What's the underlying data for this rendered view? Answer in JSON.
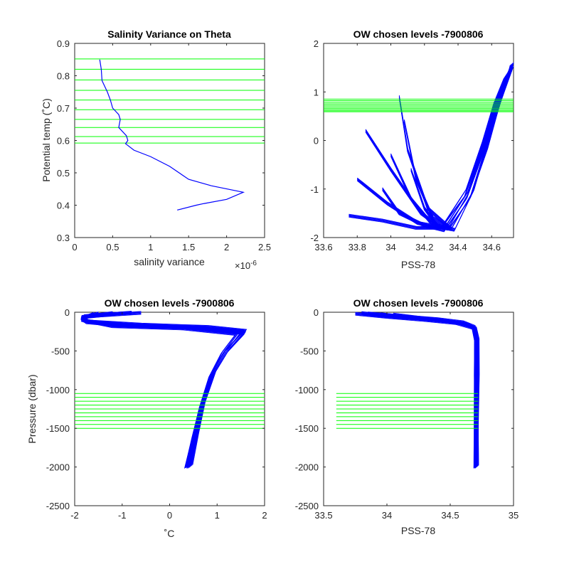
{
  "chart_data": [
    {
      "type": "line",
      "title": "Salinity Variance on Theta",
      "xlabel": "salinity variance",
      "ylabel": "Potential temp (˚C)",
      "x_exponent_label": "×10",
      "x_exponent_power": "-6",
      "xlim": [
        0,
        2.5
      ],
      "ylim": [
        0.3,
        0.9
      ],
      "xticks": [
        0,
        0.5,
        1,
        1.5,
        2,
        2.5
      ],
      "yticks": [
        0.3,
        0.4,
        0.5,
        0.6,
        0.7,
        0.8,
        0.9
      ],
      "series": [
        {
          "color": "#0000ff",
          "x": [
            0.33,
            0.35,
            0.36,
            0.43,
            0.47,
            0.5,
            0.58,
            0.6,
            0.58,
            0.68,
            0.7,
            0.67,
            0.78,
            1.0,
            1.25,
            1.5,
            1.8,
            2.22,
            2.0,
            1.7,
            1.6,
            1.35
          ],
          "y": [
            0.85,
            0.82,
            0.785,
            0.75,
            0.725,
            0.7,
            0.68,
            0.665,
            0.64,
            0.615,
            0.6,
            0.59,
            0.57,
            0.55,
            0.52,
            0.48,
            0.46,
            0.44,
            0.418,
            0.405,
            0.4,
            0.385
          ]
        }
      ],
      "reference_lines": {
        "color": "#00ff00",
        "orientation": "horizontal",
        "y": [
          0.592,
          0.612,
          0.64,
          0.665,
          0.695,
          0.725,
          0.755,
          0.787,
          0.82,
          0.852
        ],
        "x_from": 0,
        "x_to": 2.5
      }
    },
    {
      "type": "line",
      "title": "OW chosen levels -7900806",
      "xlabel": "PSS-78",
      "ylabel": "",
      "xlim": [
        33.6,
        34.73
      ],
      "ylim": [
        -2,
        2
      ],
      "xticks": [
        33.6,
        33.8,
        34,
        34.2,
        34.4,
        34.6
      ],
      "yticks": [
        -2,
        -1,
        0,
        1,
        2
      ],
      "series": [
        {
          "color": "#0000ff",
          "note_visible": "many overlapping theta-salinity profiles",
          "profiles_x": [
            [
              33.75,
              33.95,
              34.15,
              34.3,
              34.45,
              34.55,
              34.62,
              34.68,
              34.71
            ],
            [
              33.95,
              34.05,
              34.2,
              34.32,
              34.45,
              34.56,
              34.63,
              34.68,
              34.71
            ],
            [
              34.05,
              34.1,
              34.22,
              34.35,
              34.47,
              34.57,
              34.64,
              34.69,
              34.72
            ],
            [
              34.08,
              34.15,
              34.25,
              34.36,
              34.48,
              34.58,
              34.65,
              34.69,
              34.72
            ],
            [
              33.85,
              34.0,
              34.18,
              34.3,
              34.44,
              34.55,
              34.63,
              34.68,
              34.71
            ],
            [
              34.0,
              34.12,
              34.24,
              34.34,
              34.46,
              34.57,
              34.64,
              34.69,
              34.72
            ],
            [
              34.12,
              34.2,
              34.28,
              34.38,
              34.49,
              34.58,
              34.65,
              34.7,
              34.72
            ],
            [
              33.8,
              33.98,
              34.16,
              34.32,
              34.46,
              34.56,
              34.64,
              34.69,
              34.71
            ]
          ],
          "profiles_y": [
            [
              -1.55,
              -1.65,
              -1.8,
              -1.8,
              -1.0,
              0.0,
              0.8,
              1.3,
              1.45
            ],
            [
              -1.0,
              -1.5,
              -1.75,
              -1.85,
              -1.2,
              -0.1,
              0.75,
              1.25,
              1.4
            ],
            [
              0.9,
              -0.2,
              -1.4,
              -1.8,
              -1.2,
              -0.2,
              0.7,
              1.2,
              1.5
            ],
            [
              0.4,
              -0.8,
              -1.6,
              -1.82,
              -1.1,
              0.0,
              0.8,
              1.3,
              1.55
            ],
            [
              0.2,
              -0.6,
              -1.5,
              -1.8,
              -1.15,
              -0.05,
              0.78,
              1.28,
              1.45
            ],
            [
              -0.3,
              -1.2,
              -1.7,
              -1.82,
              -1.1,
              -0.05,
              0.75,
              1.25,
              1.5
            ],
            [
              -0.6,
              -1.4,
              -1.78,
              -1.84,
              -1.05,
              0.02,
              0.82,
              1.32,
              1.58
            ],
            [
              -0.8,
              -1.3,
              -1.7,
              -1.8,
              -1.05,
              0.0,
              0.8,
              1.3,
              1.45
            ]
          ]
        }
      ],
      "reference_lines": {
        "color": "#00ff00",
        "orientation": "horizontal",
        "y": [
          0.592,
          0.612,
          0.64,
          0.665,
          0.695,
          0.725,
          0.755,
          0.787,
          0.82,
          0.852
        ],
        "x_from": 33.6,
        "x_to": 34.73
      }
    },
    {
      "type": "line",
      "title": "OW chosen levels -7900806",
      "xlabel": "˚C",
      "ylabel": "Pressure (dbar)",
      "xlim": [
        -2,
        2
      ],
      "ylim": [
        -2500,
        0
      ],
      "xticks": [
        -2,
        -1,
        0,
        1,
        2
      ],
      "yticks": [
        0,
        -500,
        -1000,
        -1500,
        -2000,
        -2500
      ],
      "series": [
        {
          "color": "#0000ff",
          "note_visible": "many overlapping temperature profiles",
          "profiles_x": [
            [
              -1.2,
              -1.85,
              -1.8,
              -1.0,
              0.5,
              1.5,
              1.2,
              0.9,
              0.7,
              0.55,
              0.4
            ],
            [
              -1.5,
              -1.85,
              -1.7,
              -0.6,
              0.8,
              1.6,
              1.25,
              0.95,
              0.72,
              0.58,
              0.45
            ],
            [
              -0.8,
              -1.8,
              -1.85,
              -1.2,
              0.3,
              1.4,
              1.1,
              0.85,
              0.65,
              0.5,
              0.35
            ],
            [
              -1.0,
              -1.82,
              -1.78,
              -0.8,
              0.6,
              1.55,
              1.18,
              0.88,
              0.68,
              0.52,
              0.38
            ],
            [
              -1.6,
              -1.86,
              -1.75,
              -0.9,
              0.7,
              1.58,
              1.22,
              0.92,
              0.7,
              0.56,
              0.42
            ],
            [
              -0.6,
              -1.78,
              -1.82,
              -1.1,
              0.4,
              1.45,
              1.15,
              0.87,
              0.66,
              0.5,
              0.36
            ]
          ],
          "profiles_y": [
            [
              -10,
              -60,
              -110,
              -170,
              -200,
              -260,
              -500,
              -800,
              -1200,
              -1600,
              -2000
            ],
            [
              -15,
              -70,
              -120,
              -160,
              -190,
              -240,
              -480,
              -780,
              -1180,
              -1580,
              -1990
            ],
            [
              -5,
              -50,
              -100,
              -180,
              -210,
              -280,
              -520,
              -820,
              -1220,
              -1620,
              -2000
            ],
            [
              -12,
              -65,
              -115,
              -165,
              -195,
              -250,
              -490,
              -790,
              -1190,
              -1590,
              -1995
            ],
            [
              -20,
              -80,
              -130,
              -175,
              -205,
              -270,
              -510,
              -810,
              -1210,
              -1610,
              -2000
            ],
            [
              -8,
              -55,
              -105,
              -170,
              -200,
              -265,
              -505,
              -805,
              -1205,
              -1605,
              -1990
            ]
          ]
        }
      ],
      "reference_lines": {
        "color": "#00ff00",
        "orientation": "horizontal",
        "y": [
          -1050,
          -1100,
          -1150,
          -1200,
          -1250,
          -1300,
          -1350,
          -1400,
          -1450,
          -1500
        ],
        "x_from": -2,
        "x_to": 2
      }
    },
    {
      "type": "line",
      "title": "OW chosen levels -7900806",
      "xlabel": "PSS-78",
      "ylabel": "",
      "xlim": [
        33.5,
        35
      ],
      "ylim": [
        -2500,
        0
      ],
      "xticks": [
        33.5,
        34,
        34.5,
        35
      ],
      "yticks": [
        0,
        -500,
        -1000,
        -1500,
        -2000,
        -2500
      ],
      "series": [
        {
          "color": "#0000ff",
          "note_visible": "many overlapping salinity profiles",
          "profiles_x": [
            [
              33.75,
              34.0,
              34.3,
              34.55,
              34.68,
              34.7,
              34.7,
              34.71,
              34.71
            ],
            [
              33.85,
              34.1,
              34.4,
              34.6,
              34.69,
              34.71,
              34.71,
              34.71,
              34.71
            ],
            [
              33.95,
              34.2,
              34.45,
              34.62,
              34.7,
              34.72,
              34.71,
              34.71,
              34.71
            ],
            [
              34.05,
              34.3,
              34.5,
              34.64,
              34.7,
              34.72,
              34.72,
              34.71,
              34.7
            ],
            [
              33.8,
              34.05,
              34.35,
              34.58,
              34.68,
              34.7,
              34.7,
              34.7,
              34.7
            ]
          ],
          "profiles_y": [
            [
              -20,
              -60,
              -100,
              -140,
              -200,
              -350,
              -800,
              -1500,
              -2000
            ],
            [
              -15,
              -50,
              -90,
              -130,
              -190,
              -340,
              -790,
              -1490,
              -1990
            ],
            [
              -25,
              -70,
              -110,
              -150,
              -210,
              -360,
              -810,
              -1510,
              -2000
            ],
            [
              -30,
              -80,
              -120,
              -160,
              -220,
              -370,
              -820,
              -1520,
              -2000
            ],
            [
              -10,
              -55,
              -95,
              -135,
              -195,
              -345,
              -795,
              -1495,
              -1995
            ]
          ]
        }
      ],
      "reference_lines": {
        "color": "#00ff00",
        "orientation": "horizontal",
        "y": [
          -1050,
          -1100,
          -1150,
          -1200,
          -1250,
          -1300,
          -1350,
          -1400,
          -1450,
          -1500
        ],
        "x_from": 33.6,
        "x_to": 34.72
      }
    }
  ]
}
